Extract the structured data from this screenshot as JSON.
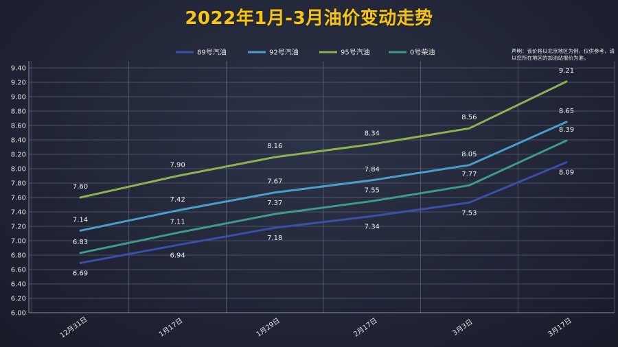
{
  "chart_data": {
    "type": "line",
    "title": "2022年1月-3月油价变动走势",
    "disclaimer": "声明：该价格以北京地区为例，仅供参考，请以您所在地区的加油站报价为准。",
    "categories": [
      "12月31日",
      "1月17日",
      "1月29日",
      "2月17日",
      "3月3日",
      "3月17日"
    ],
    "ylim": [
      6.0,
      9.4
    ],
    "ytick_step": 0.2,
    "grid": true,
    "legend_position": "top",
    "series": [
      {
        "name": "89号汽油",
        "color": "#3d4ea6",
        "values": [
          6.69,
          6.94,
          7.18,
          7.34,
          7.53,
          8.09
        ],
        "label_pos": "below"
      },
      {
        "name": "92号汽油",
        "color": "#4a9fc8",
        "values": [
          7.14,
          7.42,
          7.67,
          7.84,
          8.05,
          8.65
        ],
        "label_pos": "above"
      },
      {
        "name": "95号汽油",
        "color": "#8cb34f",
        "values": [
          7.6,
          7.9,
          8.16,
          8.34,
          8.56,
          9.21
        ],
        "label_pos": "above"
      },
      {
        "name": "0号柴油",
        "color": "#3f9a8a",
        "values": [
          6.83,
          7.11,
          7.37,
          7.55,
          7.77,
          8.39
        ],
        "label_pos": "above"
      }
    ]
  }
}
